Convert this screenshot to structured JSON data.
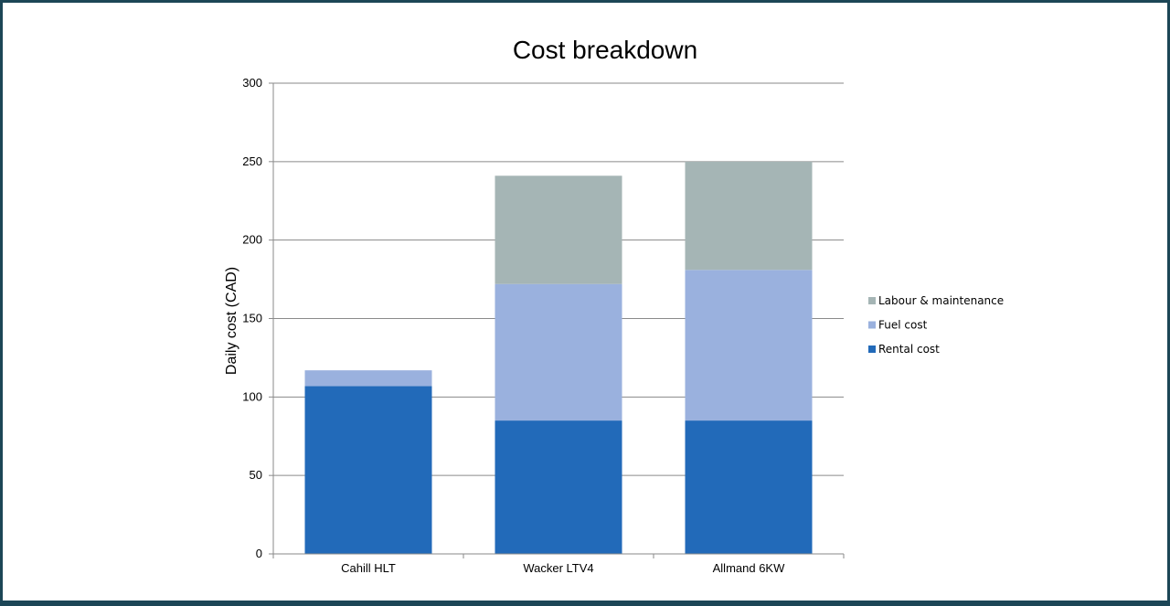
{
  "chart_data": {
    "type": "bar",
    "stacked": true,
    "title": "Cost breakdown",
    "xlabel": "",
    "ylabel": "Daily cost (CAD)",
    "ylim": [
      0,
      300
    ],
    "yticks": [
      0,
      50,
      100,
      150,
      200,
      250,
      300
    ],
    "grid": true,
    "legend_position": "right",
    "categories": [
      "Cahill HLT",
      "Wacker LTV4",
      "Allmand 6KW"
    ],
    "series": [
      {
        "name": "Rental cost",
        "color": "#226ab9",
        "values": [
          107,
          85,
          85
        ]
      },
      {
        "name": "Fuel cost",
        "color": "#9ab1de",
        "values": [
          10,
          87,
          96
        ]
      },
      {
        "name": "Labour & maintenance",
        "color": "#a5b5b5",
        "values": [
          0,
          69,
          69
        ]
      }
    ]
  }
}
